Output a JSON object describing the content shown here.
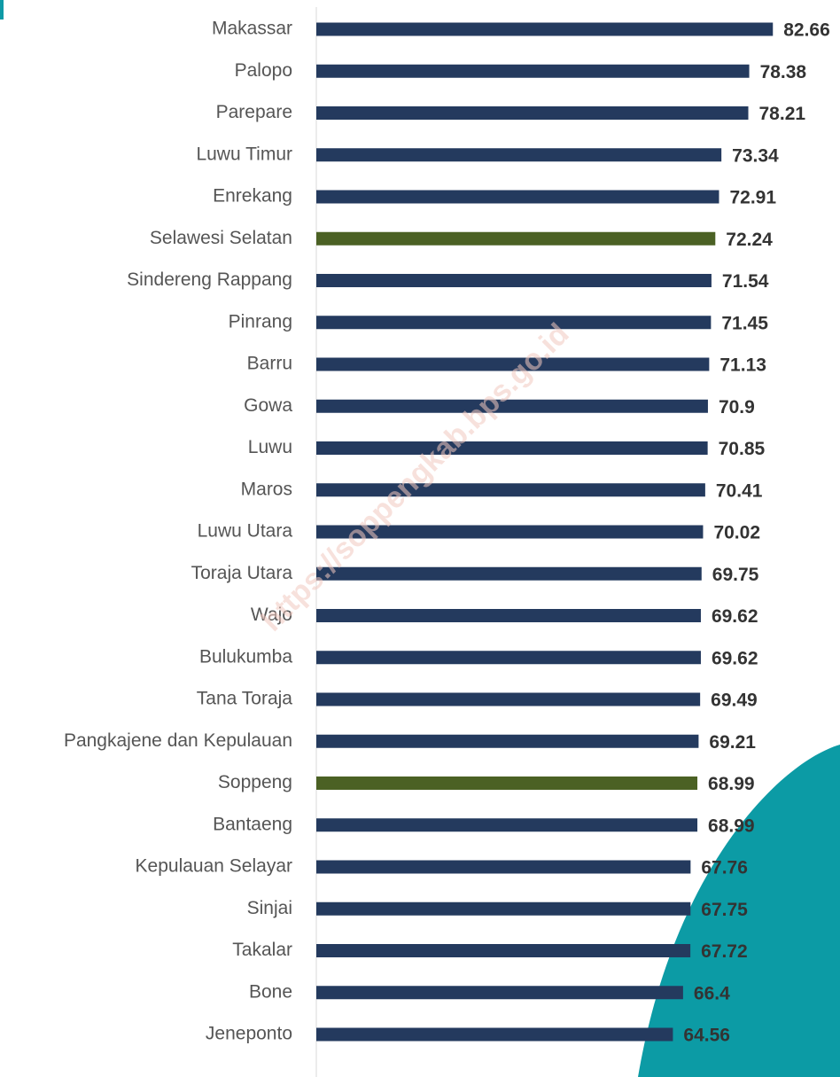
{
  "chart_data": {
    "type": "barh",
    "categories": [
      "Makassar",
      "Palopo",
      "Parepare",
      "Luwu Timur",
      "Enrekang",
      "Selawesi Selatan",
      "Sindereng Rappang",
      "Pinrang",
      "Barru",
      "Gowa",
      "Luwu",
      "Maros",
      "Luwu Utara",
      "Toraja Utara",
      "Wajo",
      "Bulukumba",
      "Tana Toraja",
      "Pangkajene dan Kepulauan",
      "Soppeng",
      "Bantaeng",
      "Kepulauan Selayar",
      "Sinjai",
      "Takalar",
      "Bone",
      "Jeneponto"
    ],
    "values": [
      82.66,
      78.38,
      78.21,
      73.34,
      72.91,
      72.24,
      71.54,
      71.45,
      71.13,
      70.9,
      70.85,
      70.41,
      70.02,
      69.75,
      69.62,
      69.62,
      69.49,
      69.21,
      68.99,
      68.99,
      67.76,
      67.75,
      67.72,
      66.4,
      64.56
    ],
    "colors": [
      "#243a5e",
      "#243a5e",
      "#243a5e",
      "#243a5e",
      "#243a5e",
      "#4b6124",
      "#243a5e",
      "#243a5e",
      "#243a5e",
      "#243a5e",
      "#243a5e",
      "#243a5e",
      "#243a5e",
      "#243a5e",
      "#243a5e",
      "#243a5e",
      "#243a5e",
      "#243a5e",
      "#4b6124",
      "#243a5e",
      "#243a5e",
      "#243a5e",
      "#243a5e",
      "#243a5e",
      "#243a5e"
    ],
    "xlim": [
      0,
      90
    ],
    "watermark": "https://soppengkab.bps.go.id"
  }
}
